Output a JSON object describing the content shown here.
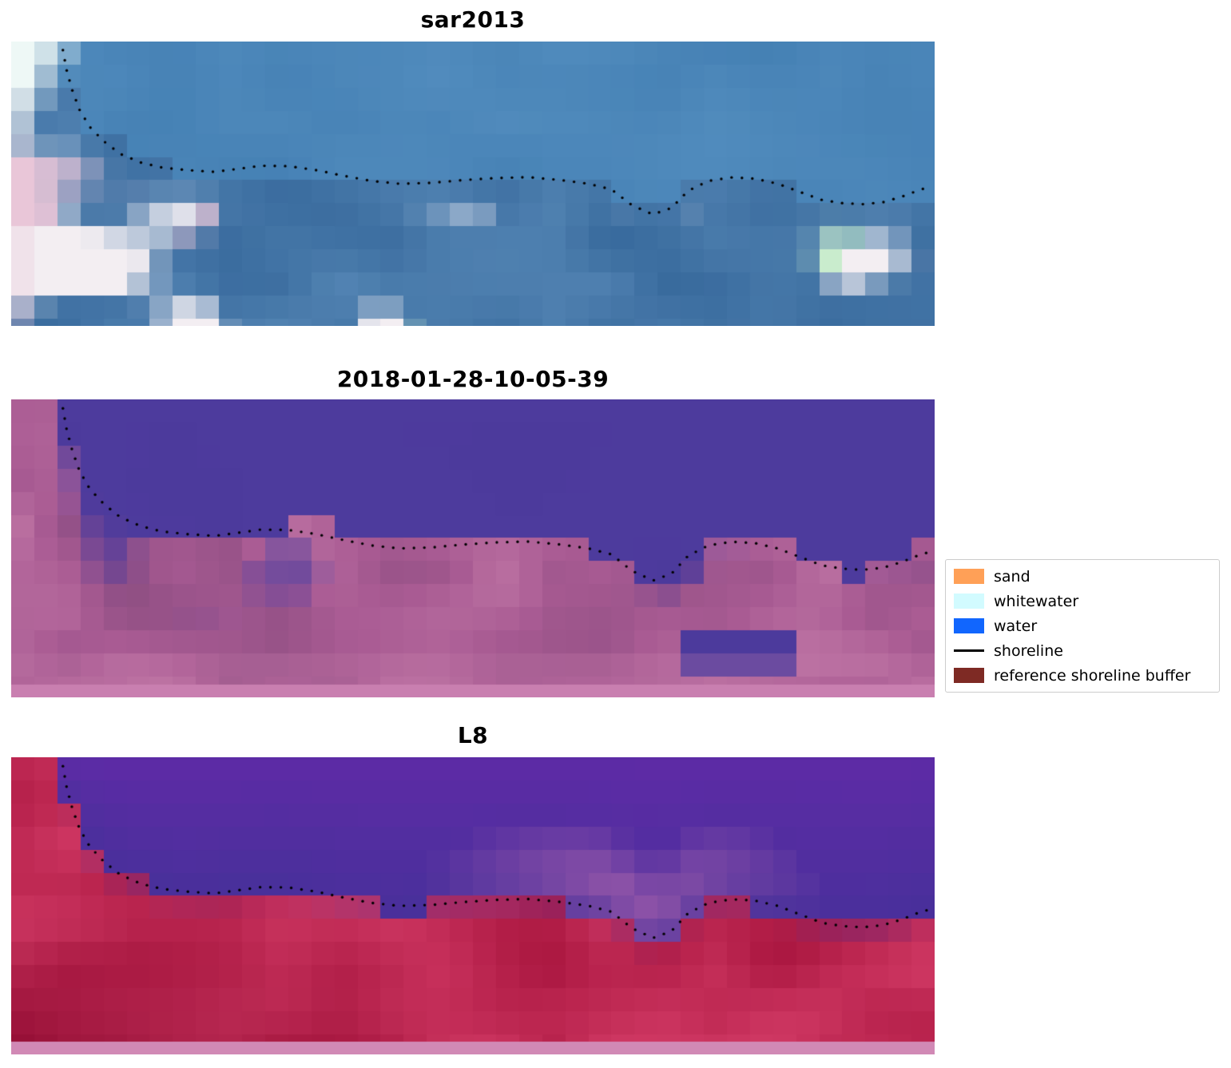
{
  "figure": {
    "background": "#ffffff",
    "panels": [
      {
        "id": "sar2013",
        "title": "sar2013",
        "seed": 11,
        "colors": {
          "water_dark": "#3a76ac",
          "water_light": "#5d97c6",
          "land_dark": "#2f6195",
          "land_mid": "#5b8cba",
          "blob_white": "#f3eef2",
          "blob_pink": "#e9c6d8",
          "blob_green": "#c9eccd",
          "corner_white": "#eef8f6"
        }
      },
      {
        "id": "classified-2018-01-28",
        "title": "2018-01-28-10-05-39",
        "seed": 23,
        "colors": {
          "water": "#4c3a9c",
          "land_dark": "#84497c",
          "land_mid": "#a95b93",
          "land_light": "#c77fab",
          "bottom_strip": "#c97fb0"
        }
      },
      {
        "id": "L8",
        "title": "L8",
        "seed": 37,
        "colors": {
          "water_top": "#5e2ba6",
          "water_bottom": "#47309a",
          "glow_pink": "#a45fab",
          "land_dark": "#a31039",
          "land_light": "#dd4470",
          "land_deep": "#8e0b31",
          "bottom_strip": "#d189b5"
        }
      }
    ],
    "legend": {
      "items": [
        {
          "label": "sand",
          "type": "patch",
          "color": "#ffa057"
        },
        {
          "label": "whitewater",
          "type": "patch",
          "color": "#d2fbff"
        },
        {
          "label": "water",
          "type": "patch",
          "color": "#1166fe"
        },
        {
          "label": "shoreline",
          "type": "line",
          "color": "#000000"
        },
        {
          "label": "reference shoreline buffer",
          "type": "patch",
          "color": "#7e2a24"
        }
      ]
    }
  },
  "chart_data": {
    "type": "heatmap",
    "title": "",
    "subplots": [
      {
        "title": "sar2013",
        "kind": "SAR satellite image, blue tones, dotted detected shoreline overlay"
      },
      {
        "title": "2018-01-28-10-05-39",
        "kind": "classified optical image: water indigo, land pink/magenta, dotted shoreline overlay"
      },
      {
        "title": "L8",
        "kind": "Landsat-8 image: water purple, land red/crimson, dotted shoreline overlay, light pink bottom strip"
      }
    ],
    "legend_entries": [
      "sand",
      "whitewater",
      "water",
      "shoreline",
      "reference shoreline buffer"
    ],
    "legend_position": "center right",
    "grid": false,
    "shoreline_path_normalized": [
      [
        0.056,
        0.03
      ],
      [
        0.06,
        0.1
      ],
      [
        0.066,
        0.17
      ],
      [
        0.074,
        0.24
      ],
      [
        0.085,
        0.3
      ],
      [
        0.1,
        0.35
      ],
      [
        0.118,
        0.395
      ],
      [
        0.14,
        0.425
      ],
      [
        0.163,
        0.443
      ],
      [
        0.19,
        0.452
      ],
      [
        0.22,
        0.458
      ],
      [
        0.245,
        0.448
      ],
      [
        0.27,
        0.437
      ],
      [
        0.3,
        0.438
      ],
      [
        0.33,
        0.452
      ],
      [
        0.36,
        0.472
      ],
      [
        0.39,
        0.49
      ],
      [
        0.42,
        0.5
      ],
      [
        0.455,
        0.497
      ],
      [
        0.49,
        0.487
      ],
      [
        0.525,
        0.48
      ],
      [
        0.56,
        0.477
      ],
      [
        0.595,
        0.487
      ],
      [
        0.625,
        0.5
      ],
      [
        0.65,
        0.52
      ],
      [
        0.672,
        0.575
      ],
      [
        0.695,
        0.608
      ],
      [
        0.715,
        0.585
      ],
      [
        0.733,
        0.525
      ],
      [
        0.755,
        0.49
      ],
      [
        0.78,
        0.478
      ],
      [
        0.805,
        0.482
      ],
      [
        0.83,
        0.5
      ],
      [
        0.855,
        0.53
      ],
      [
        0.878,
        0.557
      ],
      [
        0.9,
        0.568
      ],
      [
        0.922,
        0.572
      ],
      [
        0.944,
        0.565
      ],
      [
        0.965,
        0.545
      ],
      [
        0.985,
        0.52
      ],
      [
        0.998,
        0.51
      ]
    ]
  }
}
